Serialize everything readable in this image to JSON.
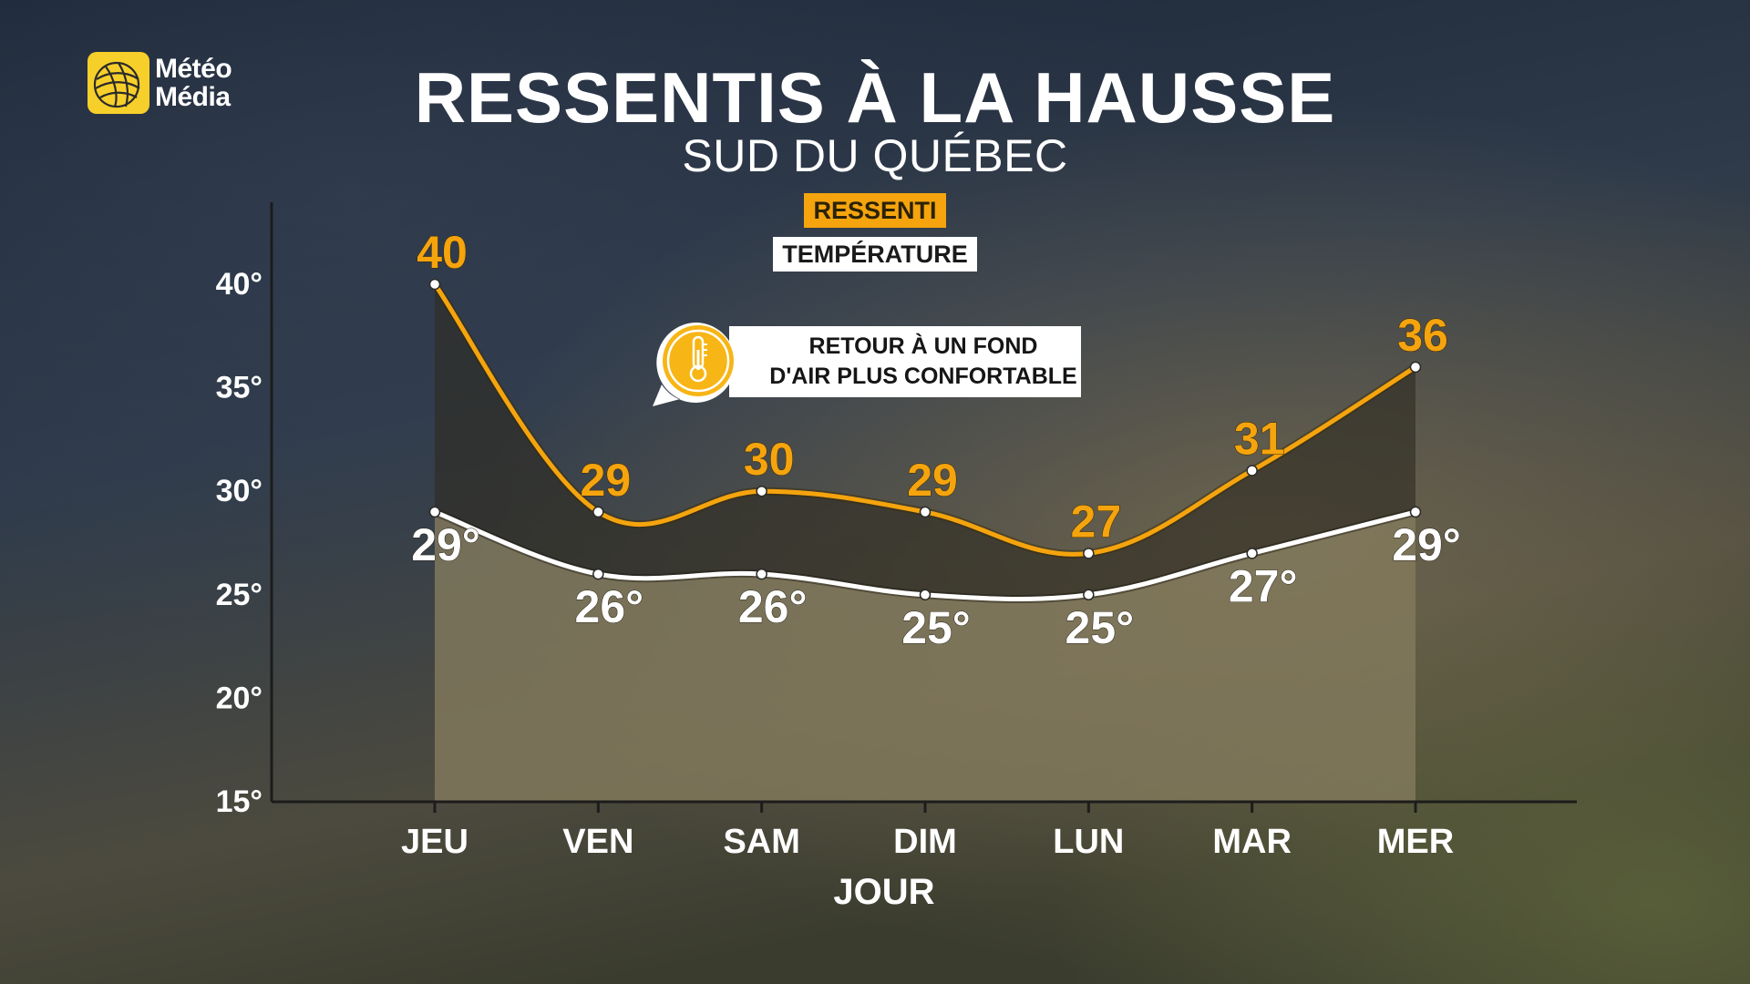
{
  "brand": {
    "line1": "Météo",
    "line2": "Média"
  },
  "title": "RESSENTIS À LA HAUSSE",
  "subtitle": "SUD DU QUÉBEC",
  "legend": {
    "ressenti": "RESSENTI",
    "temperature": "TEMPÉRATURE"
  },
  "callout": {
    "line1": "RETOUR À UN FOND",
    "line2": "D'AIR PLUS CONFORTABLE",
    "icon": "thermometer-icon"
  },
  "colors": {
    "ressenti": "#f5a40e",
    "temperature": "#ffffff"
  },
  "chart_data": {
    "type": "line",
    "title": "RESSENTIS À LA HAUSSE",
    "subtitle": "SUD DU QUÉBEC",
    "xlabel": "JOUR",
    "ylabel": "",
    "categories": [
      "JEU",
      "VEN",
      "SAM",
      "DIM",
      "LUN",
      "MAR",
      "MER"
    ],
    "ylim": [
      15,
      40
    ],
    "yticks": [
      15,
      20,
      25,
      30,
      35,
      40
    ],
    "ytick_labels": [
      "15°",
      "20°",
      "25°",
      "30°",
      "35°",
      "40°"
    ],
    "grid": false,
    "legend_position": "top-center",
    "series": [
      {
        "name": "RESSENTI",
        "values": [
          40,
          29,
          30,
          29,
          27,
          31,
          36
        ],
        "labels": [
          "40",
          "29",
          "30",
          "29",
          "27",
          "31",
          "36"
        ]
      },
      {
        "name": "TEMPÉRATURE",
        "values": [
          29,
          26,
          26,
          25,
          25,
          27,
          29
        ],
        "labels": [
          "29°",
          "26°",
          "26°",
          "25°",
          "25°",
          "27°",
          "29°"
        ]
      }
    ]
  }
}
